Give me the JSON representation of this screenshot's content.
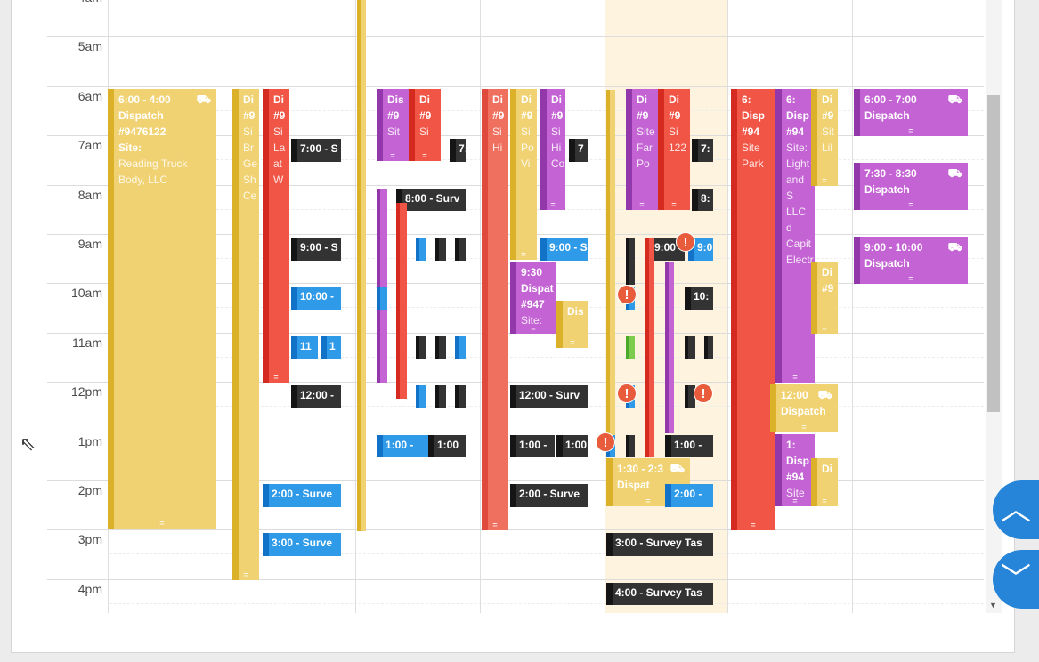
{
  "time_labels": [
    "4am",
    "5am",
    "6am",
    "7am",
    "8am",
    "9am",
    "10am",
    "11am",
    "12pm",
    "1pm",
    "2pm",
    "3pm",
    "4pm"
  ],
  "events": {
    "a1": {
      "time": "6:00 - 4:00",
      "title": "Dispatch",
      "number": "#9476122",
      "site_label": "Site:",
      "site": "Reading Truck Body, LLC"
    },
    "b1": {
      "title": "Di",
      "number": "#9",
      "site": "Si",
      "detail": "Br Ge Sh Ce"
    },
    "b2": {
      "title": "Di",
      "number": "#9",
      "site": "Si",
      "detail": "La at W"
    },
    "b3": "7:00 - S",
    "b4": "9:00 - S",
    "b5": "10:00 -",
    "b6": "11",
    "b7": "1",
    "b8": "12:00 -",
    "b9": "2:00 - Surve",
    "b10": "3:00 - Surve",
    "c1": {
      "title": "Dis",
      "number": "#9",
      "site": "Sit"
    },
    "c2": {
      "title": "Di",
      "number": "#9",
      "site": "Si"
    },
    "c3": "7:",
    "c4": "8:00 - Surv",
    "c5": "1:00 -",
    "c6": "1:00",
    "d1": {
      "title": "Di",
      "number": "#9",
      "site": "Si",
      "detail": "Hi"
    },
    "d2": {
      "title": "Di",
      "number": "#9",
      "site": "Si",
      "detail": "Po Vi"
    },
    "d3": {
      "title": "Di",
      "number": "#9",
      "site": "Si",
      "detail": "Hi Co"
    },
    "d4": "7",
    "d5": "9:00 - S",
    "d6": {
      "time": "9:30",
      "title": "Dispat",
      "number": "#947",
      "site": "Site:"
    },
    "d7": {
      "title": "Dis"
    },
    "d8": "12:00 - Surv",
    "d9": "1:00 -",
    "d10": "1:00",
    "d11": "2:00 - Surve",
    "e1": {
      "title": "Di",
      "number": "#9",
      "site": "Site",
      "detail": "Far Po"
    },
    "e2": {
      "title": "Di",
      "number": "#9",
      "site": "Si",
      "detail": "122"
    },
    "e3": "7:",
    "e4": "8:",
    "e5": "9:00",
    "e6": "9:0",
    "e7": "10:",
    "e8": "1:00 -",
    "e9": {
      "time": "1:30 - 2:3",
      "title": "Dispat"
    },
    "e10": "2:00 -",
    "e11": "3:00 - Survey Tas",
    "e12": "4:00 - Survey Tas",
    "f1": {
      "time": "6:",
      "title": "Disp",
      "number": "#94",
      "site": "Site",
      "detail": "Park"
    },
    "f2": {
      "time": "6:",
      "title": "Disp",
      "number": "#94",
      "site": "Site:",
      "detail": "Light and S LLC d Capit Electr"
    },
    "f3": {
      "title": "Di",
      "number": "#9",
      "site": "Sit",
      "detail": "Lil"
    },
    "f4": {
      "title": "Di",
      "number": "#9"
    },
    "f5": {
      "time": "12:00",
      "title": "Dispatch"
    },
    "f6": {
      "time": "1:",
      "title": "Disp",
      "number": "#94",
      "site": "Site"
    },
    "f7": {
      "title": "Di"
    },
    "g1": {
      "time": "6:00 - 7:00",
      "title": "Dispatch"
    },
    "g2": {
      "time": "7:30 - 8:30",
      "title": "Dispatch"
    },
    "g3": {
      "time": "9:00 - 10:00",
      "title": "Dispatch"
    }
  },
  "icons": {
    "truck": "truck-icon",
    "warning": "warning-icon"
  },
  "colors": {
    "dispatch_yellow": "#f0d272",
    "dispatch_red": "#f05545",
    "dispatch_purple": "#c464d4",
    "survey_black": "#333333",
    "survey_blue": "#2f9ae8",
    "today_bg": "#fdf3df",
    "nav_blue": "#2684d9"
  },
  "nav": {
    "up_glyph": "︿",
    "down_glyph": "﹀"
  }
}
